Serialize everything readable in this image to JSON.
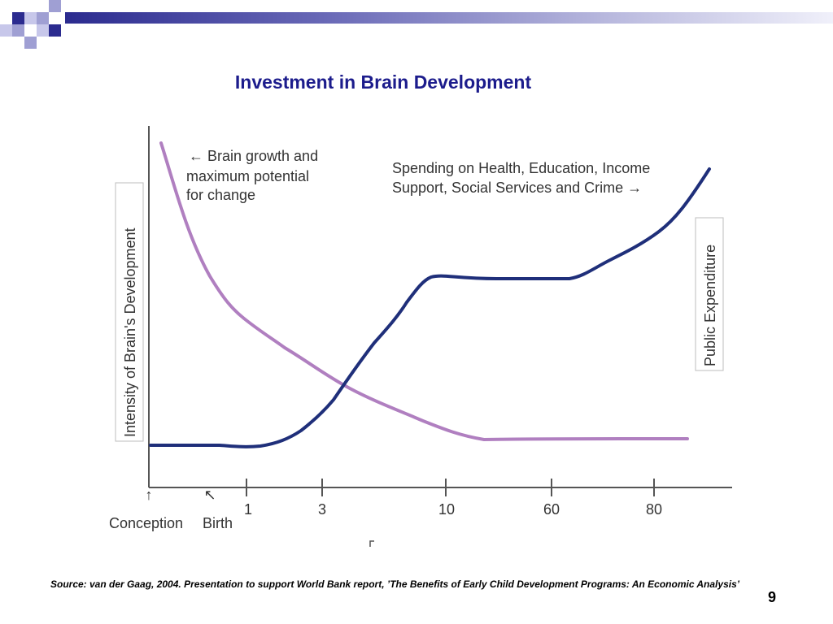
{
  "slide": {
    "title": "Investment in Brain Development",
    "source": "Source: van der Gaag, 2004. Presentation to support World Bank report, ’The Benefits of Early Child Development Programs: An Economic Analysis’",
    "page_number": "9",
    "colors": {
      "title": "#1c1c8c",
      "deco_dark": "#2b2b8f",
      "deco_light": "#9f9fd3"
    }
  },
  "chart_data": {
    "type": "line",
    "title": "",
    "xlabel": "",
    "ylabel_left": "Intensity of Brain's Development",
    "ylabel_right": "Public Expenditure",
    "x_ticks": [
      "1",
      "3",
      "10",
      "60",
      "80"
    ],
    "x_markers": [
      {
        "label": "Conception",
        "arrow": "↑"
      },
      {
        "label": "Birth",
        "arrow": "↖"
      }
    ],
    "annotations": {
      "brain": [
        "← Brain growth and",
        "maximum potential",
        "for change"
      ],
      "spending": [
        "Spending on Health, Education, Income",
        "Support, Social Services and Crime  →"
      ]
    },
    "series": [
      {
        "name": "Brain growth and maximum potential for change",
        "color": "#b07fc0",
        "x_axis": "Conception → 80",
        "trend": "steep decline from high at conception, flattening to a low plateau after age 10"
      },
      {
        "name": "Spending on Health, Education, Income Support, Social Services and Crime",
        "color": "#1f2f7a",
        "x_axis": "Conception → 80+",
        "trend": "flat low until age 1, rising steeply to a plateau near age 10, flat until ~60, then rising to its maximum past 80"
      }
    ],
    "legend": "inline annotations",
    "grid": false
  }
}
